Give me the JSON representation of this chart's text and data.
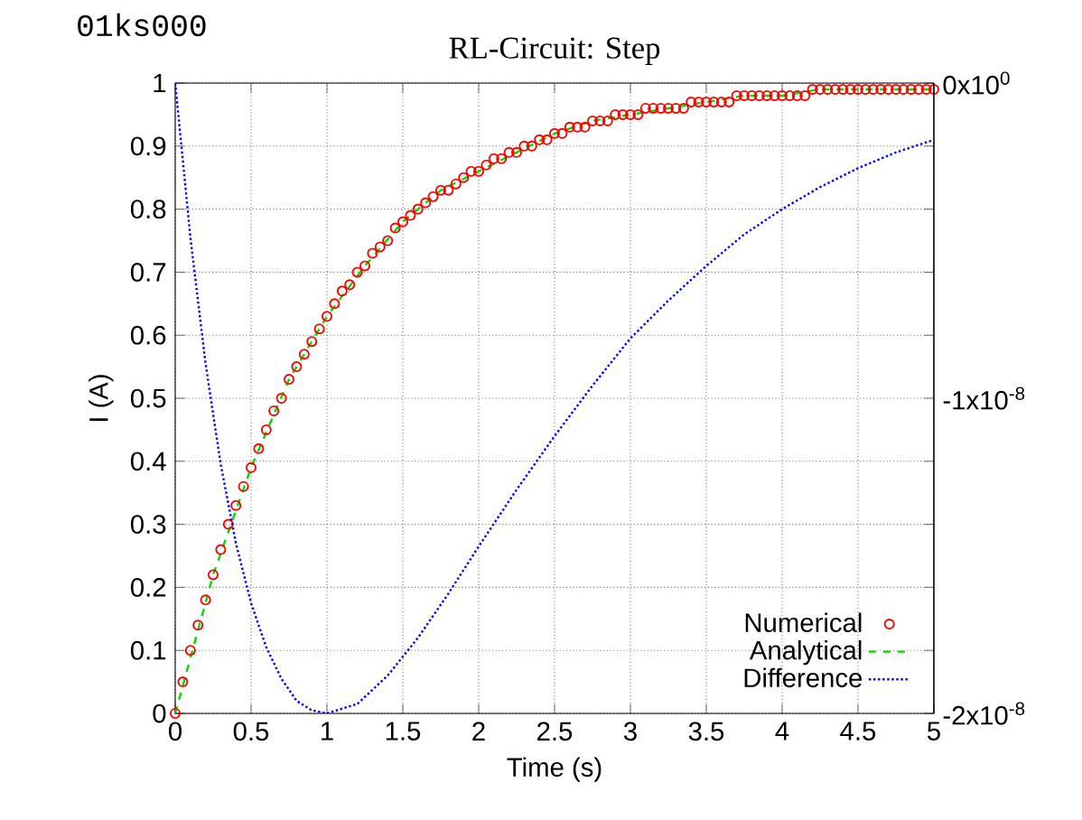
{
  "chart_data": {
    "type": "line",
    "title": "RL-Circuit: Step",
    "xlabel": "Time (s)",
    "ylabel": "I (A)",
    "annotations": [
      "01ks000"
    ],
    "xlim": [
      0,
      5
    ],
    "xticks": [
      0,
      0.5,
      1,
      1.5,
      2,
      2.5,
      3,
      3.5,
      4,
      4.5,
      5
    ],
    "ylim": [
      0,
      1
    ],
    "yticks": [
      0,
      0.1,
      0.2,
      0.3,
      0.4,
      0.5,
      0.6,
      0.7,
      0.8,
      0.9,
      1
    ],
    "y2lim": [
      -2e-08,
      0
    ],
    "y2ticks": [
      {
        "value": -2e-08,
        "label": "-2x10$^{-8}$"
      },
      {
        "value": -1.8e-08,
        "label": null
      },
      {
        "value": -1.6e-08,
        "label": null
      },
      {
        "value": -1.4e-08,
        "label": null
      },
      {
        "value": -1.2e-08,
        "label": null
      },
      {
        "value": -1e-08,
        "label": "-1x10$^{-8}$"
      },
      {
        "value": -8e-09,
        "label": null
      },
      {
        "value": -6e-09,
        "label": null
      },
      {
        "value": -4e-09,
        "label": null
      },
      {
        "value": -2e-09,
        "label": null
      },
      {
        "value": 0,
        "label": "0x10$^{0}$"
      }
    ],
    "grid": true,
    "legend": "bottom right",
    "series": [
      {
        "name": "Numerical",
        "type": "scatter",
        "marker": "circle",
        "color": "#ff0000",
        "x": [
          0,
          0.05,
          0.1,
          0.15,
          0.2,
          0.25,
          0.3,
          0.35,
          0.4,
          0.45,
          0.5,
          0.55,
          0.6,
          0.65,
          0.7,
          0.75,
          0.8,
          0.85,
          0.9,
          0.95,
          1,
          1.05,
          1.1,
          1.15,
          1.2,
          1.25,
          1.3,
          1.35,
          1.4,
          1.45,
          1.5,
          1.55,
          1.6,
          1.65,
          1.7,
          1.75,
          1.8,
          1.85,
          1.9,
          1.95,
          2,
          2.05,
          2.1,
          2.15,
          2.2,
          2.25,
          2.3,
          2.35,
          2.4,
          2.45,
          2.5,
          2.55,
          2.6,
          2.65,
          2.7,
          2.75,
          2.8,
          2.85,
          2.9,
          2.95,
          3,
          3.05,
          3.1,
          3.15,
          3.2,
          3.25,
          3.3,
          3.35,
          3.4,
          3.45,
          3.5,
          3.55,
          3.6,
          3.65,
          3.7,
          3.75,
          3.8,
          3.85,
          3.9,
          3.95,
          4,
          4.05,
          4.1,
          4.15,
          4.2,
          4.25,
          4.3,
          4.35,
          4.4,
          4.45,
          4.5,
          4.55,
          4.6,
          4.65,
          4.7,
          4.75,
          4.8,
          4.85,
          4.9,
          4.95,
          5
        ],
        "values": [
          0,
          0.05,
          0.1,
          0.14,
          0.18,
          0.22,
          0.26,
          0.3,
          0.33,
          0.36,
          0.39,
          0.42,
          0.45,
          0.48,
          0.5,
          0.53,
          0.55,
          0.57,
          0.59,
          0.61,
          0.63,
          0.65,
          0.67,
          0.68,
          0.7,
          0.71,
          0.73,
          0.74,
          0.75,
          0.77,
          0.78,
          0.79,
          0.8,
          0.81,
          0.82,
          0.83,
          0.83,
          0.84,
          0.85,
          0.86,
          0.86,
          0.87,
          0.88,
          0.88,
          0.89,
          0.89,
          0.9,
          0.9,
          0.91,
          0.91,
          0.92,
          0.92,
          0.93,
          0.93,
          0.93,
          0.94,
          0.94,
          0.94,
          0.95,
          0.95,
          0.95,
          0.95,
          0.96,
          0.96,
          0.96,
          0.96,
          0.96,
          0.96,
          0.97,
          0.97,
          0.97,
          0.97,
          0.97,
          0.97,
          0.98,
          0.98,
          0.98,
          0.98,
          0.98,
          0.98,
          0.98,
          0.98,
          0.98,
          0.98,
          0.99,
          0.99,
          0.99,
          0.99,
          0.99,
          0.99,
          0.99,
          0.99,
          0.99,
          0.99,
          0.99,
          0.99,
          0.99,
          0.99,
          0.99,
          0.99,
          0.99
        ]
      },
      {
        "name": "Analytical",
        "line_style": "dashed",
        "color": "#00dd00",
        "x": [
          0,
          0.25,
          0.5,
          0.75,
          1,
          1.25,
          1.5,
          1.75,
          2,
          2.25,
          2.5,
          2.75,
          3,
          3.25,
          3.5,
          3.75,
          4,
          4.25,
          4.5,
          4.75,
          5
        ],
        "values": [
          0,
          0.22,
          0.39,
          0.53,
          0.63,
          0.71,
          0.78,
          0.83,
          0.86,
          0.89,
          0.92,
          0.94,
          0.95,
          0.96,
          0.97,
          0.98,
          0.98,
          0.99,
          0.99,
          0.99,
          0.99
        ]
      },
      {
        "name": "Difference",
        "line_style": "dotted",
        "axis": "y2",
        "color": "#0000ff",
        "x": [
          0,
          0.1,
          0.2,
          0.3,
          0.4,
          0.5,
          0.6,
          0.7,
          0.8,
          0.9,
          1,
          1.2,
          1.4,
          1.6,
          1.8,
          2,
          2.25,
          2.5,
          2.75,
          3,
          3.25,
          3.5,
          3.75,
          4,
          4.25,
          4.5,
          4.75,
          5
        ],
        "values": [
          0,
          -4.9e-09,
          -8.9e-09,
          -1.21e-08,
          -1.46e-08,
          -1.65e-08,
          -1.79e-08,
          -1.89e-08,
          -1.96e-08,
          -1.99e-08,
          -2e-08,
          -1.97e-08,
          -1.88e-08,
          -1.76e-08,
          -1.62e-08,
          -1.47e-08,
          -1.29e-08,
          -1.12e-08,
          -9.6e-09,
          -8.1e-09,
          -6.9e-09,
          -5.8e-09,
          -4.8e-09,
          -4e-09,
          -3.3e-09,
          -2.7e-09,
          -2.2e-09,
          -1.8e-09
        ]
      }
    ]
  }
}
